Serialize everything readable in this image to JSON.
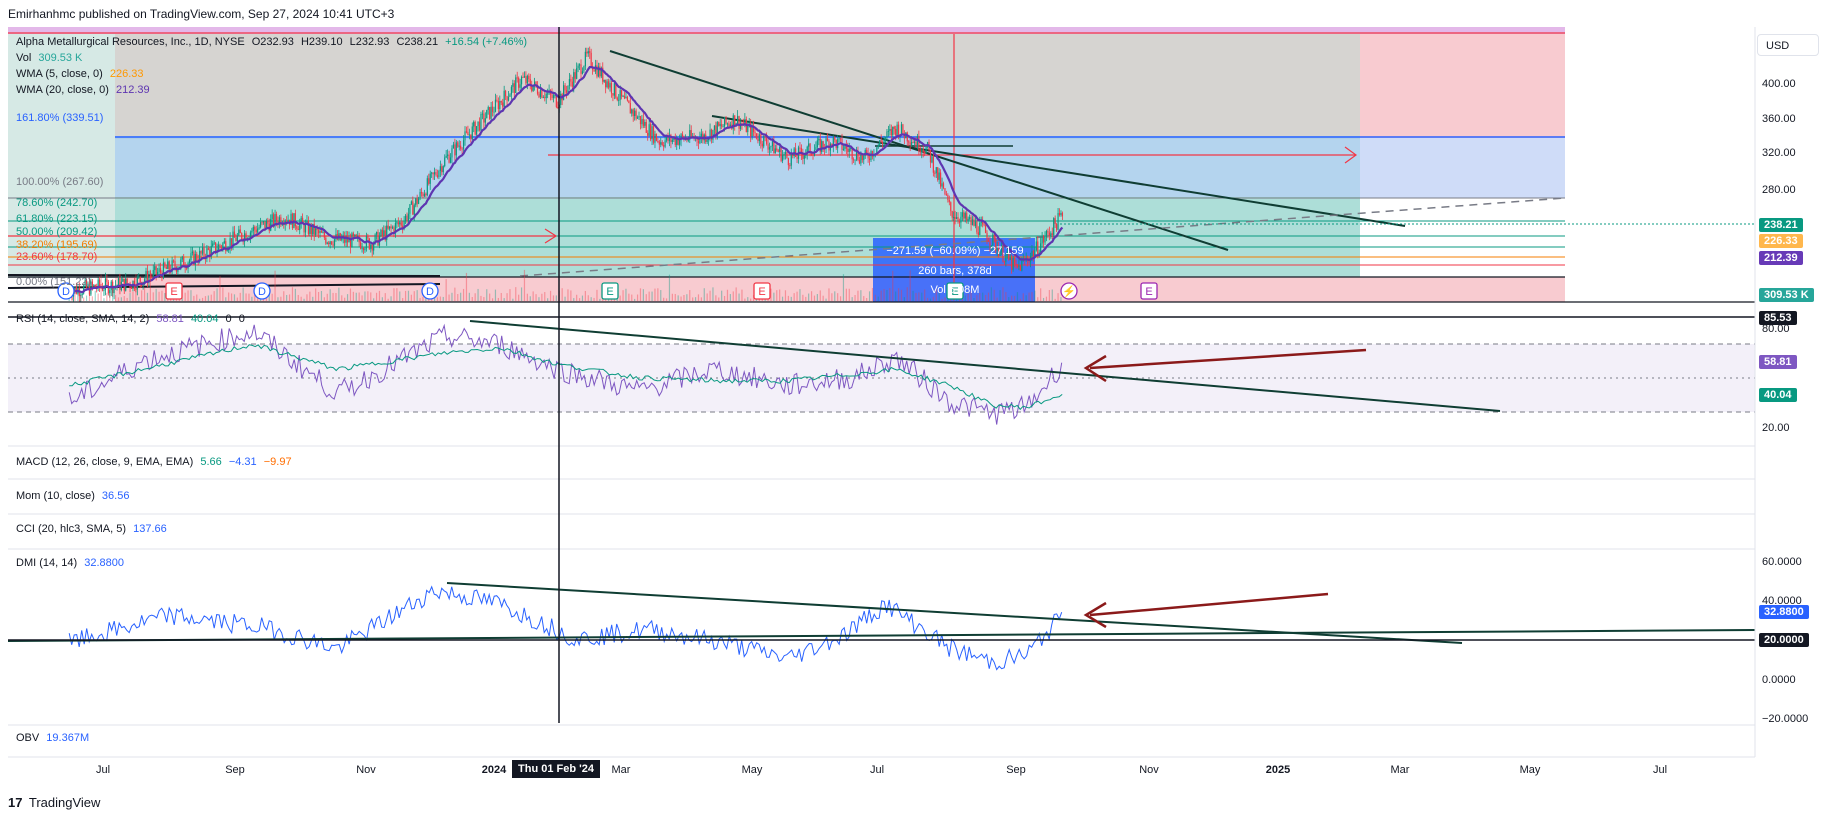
{
  "header": "Emirhanhmc published on TradingView.com, Sep 27, 2024 10:41 UTC+3",
  "currency_button": "USD",
  "footer_brand": "TradingView",
  "footer_logo": "17",
  "legends": {
    "main": {
      "title": "Alpha Metallurgical Resources, Inc., 1D, NYSE",
      "o": "O232.93",
      "h": "H239.10",
      "l": "L232.93",
      "c": "C238.21",
      "chg": "+16.54 (+7.46%)"
    },
    "vol": {
      "label": "Vol",
      "value": "309.53 K"
    },
    "wma5": {
      "label": "WMA (5, close, 0)",
      "value": "226.33"
    },
    "wma20": {
      "label": "WMA (20, close, 0)",
      "value": "212.39"
    },
    "rsi": {
      "label": "RSI (14, close, SMA, 14, 2)",
      "v1": "58.81",
      "v2": "40.04",
      "v3": "0",
      "v4": "0"
    },
    "macd": {
      "label": "MACD (12, 26, close, 9, EMA, EMA)",
      "v1": "5.66",
      "v2": "−4.31",
      "v3": "−9.97"
    },
    "mom": {
      "label": "Mom (10, close)",
      "value": "36.56"
    },
    "cci": {
      "label": "CCI (20, hlc3, SMA, 5)",
      "value": "137.66"
    },
    "dmi": {
      "label": "DMI (14, 14)",
      "value": "32.8800"
    },
    "obv": {
      "label": "OBV",
      "value": "19.367M"
    }
  },
  "fib_labels": [
    {
      "text": "161.80% (339.51)",
      "color": "#2962ff"
    },
    {
      "text": "100.00% (267.60)",
      "color": "#787b86"
    },
    {
      "text": "78.60% (242.70)",
      "color": "#089981"
    },
    {
      "text": "61.80% (223.15)",
      "color": "#089981"
    },
    {
      "text": "50.00% (209.42)",
      "color": "#089981"
    },
    {
      "text": "38.20% (195.69)",
      "color": "#f57c00"
    },
    {
      "text": "23.60% (178.70)",
      "color": "#f23645"
    },
    {
      "text": "0.00% (151.22)",
      "color": "#787b86"
    }
  ],
  "measure_box": {
    "line1": "−271.59 (−60.09%) −27,159",
    "line2": "260 bars, 378d",
    "line3": "Vol 5.08M"
  },
  "crosshair_date": "Thu 01 Feb '24",
  "price_axis_tags": [
    {
      "text": "238.21",
      "bg": "#089981"
    },
    {
      "text": "226.33",
      "bg": "#ffb74d"
    },
    {
      "text": "212.39",
      "bg": "#673ab7"
    },
    {
      "text": "309.53 K",
      "bg": "#26a69a"
    },
    {
      "text": "85.53",
      "bg": "#131722"
    },
    {
      "text": "58.81",
      "bg": "#7e57c2"
    },
    {
      "text": "40.04",
      "bg": "#089981"
    },
    {
      "text": "32.8800",
      "bg": "#2962ff"
    },
    {
      "text": "20.0000",
      "bg": "#131722"
    }
  ],
  "events": [
    "D",
    "E",
    "D",
    "D",
    "E",
    "E",
    "E",
    "⚡",
    "E"
  ],
  "chart_data": [
    {
      "type": "candlestick",
      "title": "Alpha Metallurgical Resources, Inc., 1D, NYSE",
      "x_ticks": [
        "Jul",
        "Sep",
        "Nov",
        "2024",
        "Mar",
        "May",
        "Jul",
        "Sep",
        "Nov",
        "2025",
        "Mar",
        "May",
        "Jul"
      ],
      "y_ticks": [
        "400.00",
        "360.00",
        "320.00",
        "280.00"
      ],
      "ylim": [
        150,
        450
      ],
      "close_path": {
        "x": [
          "2023-06-15",
          "2023-07-15",
          "2023-08-15",
          "2023-09-10",
          "2023-09-25",
          "2023-10-15",
          "2023-11-05",
          "2023-11-20",
          "2023-12-10",
          "2024-01-01",
          "2024-01-15",
          "2024-02-01",
          "2024-02-15",
          "2024-03-01",
          "2024-03-20",
          "2024-04-10",
          "2024-04-25",
          "2024-05-20",
          "2024-06-10",
          "2024-06-25",
          "2024-07-10",
          "2024-07-25",
          "2024-08-05",
          "2024-08-20",
          "2024-09-05",
          "2024-09-15",
          "2024-09-27"
        ],
        "y": [
          152,
          160,
          190,
          220,
          235,
          210,
          205,
          230,
          300,
          355,
          390,
          365,
          415,
          370,
          320,
          325,
          345,
          300,
          320,
          300,
          335,
          310,
          240,
          220,
          175,
          200,
          238.21
        ]
      },
      "series": [
        {
          "name": "WMA (5, close, 0)",
          "last": 226.33
        },
        {
          "name": "WMA (20, close, 0)",
          "last": 212.39
        }
      ],
      "volume_last": "309.53 K"
    },
    {
      "type": "line",
      "title": "RSI (14, close, SMA, 14, 2)",
      "y_ticks": [
        "80.00",
        "20.00"
      ],
      "levels": [
        70,
        50,
        30
      ],
      "ylim": [
        10,
        90
      ],
      "x": [
        "2023-06-15",
        "2023-07-20",
        "2023-09-10",
        "2023-10-20",
        "2023-12-10",
        "2024-01-05",
        "2024-02-01",
        "2024-03-10",
        "2024-04-15",
        "2024-05-20",
        "2024-06-20",
        "2024-07-10",
        "2024-08-05",
        "2024-08-25",
        "2024-09-10",
        "2024-09-27"
      ],
      "series": [
        {
          "name": "RSI",
          "values": [
            35,
            60,
            78,
            40,
            75,
            70,
            55,
            42,
            55,
            45,
            50,
            62,
            35,
            28,
            32,
            58.81
          ]
        },
        {
          "name": "RSI-based MA",
          "values": [
            45,
            55,
            70,
            55,
            65,
            68,
            58,
            50,
            48,
            48,
            52,
            55,
            45,
            33,
            32,
            40.04
          ]
        }
      ]
    },
    {
      "type": "line",
      "title": "DMI (14, 14)",
      "y_ticks": [
        "60.0000",
        "40.0000",
        "0.0000",
        "−20.0000"
      ],
      "ylim": [
        -20,
        60
      ],
      "x": [
        "2023-06-15",
        "2023-08-01",
        "2023-09-15",
        "2023-10-20",
        "2023-12-05",
        "2024-01-05",
        "2024-02-10",
        "2024-03-15",
        "2024-04-20",
        "2024-05-20",
        "2024-06-15",
        "2024-07-05",
        "2024-08-05",
        "2024-08-25",
        "2024-09-10",
        "2024-09-27"
      ],
      "series": [
        {
          "name": "DMI",
          "values": [
            18,
            32,
            26,
            15,
            45,
            38,
            20,
            25,
            18,
            10,
            22,
            38,
            15,
            8,
            12,
            32.88
          ]
        }
      ]
    }
  ]
}
